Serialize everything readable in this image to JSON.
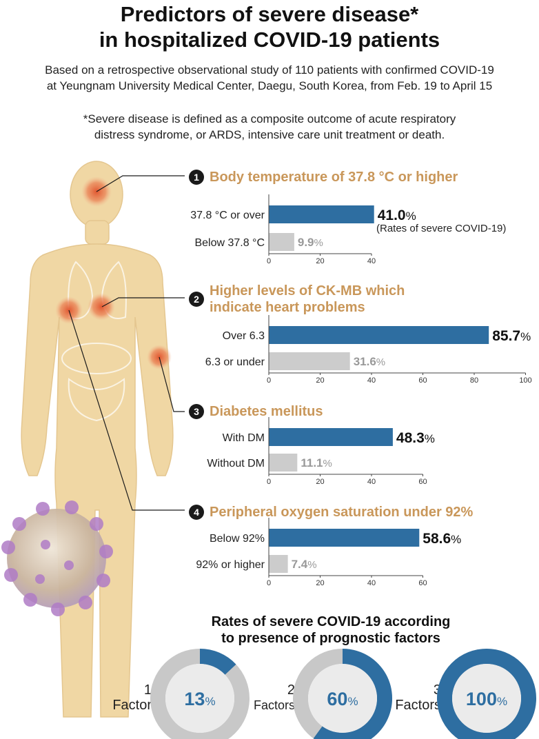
{
  "title": [
    "Predictors of severe disease*",
    "in hospitalized COVID-19 patients"
  ],
  "subtitle": [
    "Based on a retrospective observational study of 110 patients with confirmed COVID-19",
    "at Yeungnam University Medical Center, Daegu, South Korea, from Feb. 19 to April 15"
  ],
  "footnote": [
    "*Severe disease is defined as a composite outcome of acute respiratory",
    "distress syndrome, or ARDS, intensive care unit treatment or death."
  ],
  "colors": {
    "primary_bar": "#2e6ea1",
    "secondary_bar": "#cccccc",
    "section_title": "#c9975a",
    "secondary_text": "#999999"
  },
  "sections": [
    {
      "number": "1",
      "title": [
        "Body temperature of 37.8 °C or higher"
      ],
      "note": "(Rates of severe COVID-19)"
    },
    {
      "number": "2",
      "title": [
        "Higher levels of CK-MB which",
        "indicate heart problems"
      ]
    },
    {
      "number": "3",
      "title": [
        "Diabetes mellitus"
      ]
    },
    {
      "number": "4",
      "title": [
        "Peripheral oxygen saturation under 92%"
      ]
    }
  ],
  "donut_section": {
    "title": [
      "Rates of severe COVID-19 according",
      "to presence of prognostic factors"
    ]
  },
  "chart_data": [
    {
      "type": "bar",
      "orientation": "horizontal",
      "categories": [
        "37.8 °C or over",
        "Below 37.8 °C"
      ],
      "values": [
        41.0,
        9.9
      ],
      "value_labels": [
        "41.0",
        "9.9"
      ],
      "unit": "%",
      "xticks": [
        0,
        20,
        40
      ],
      "xlim": [
        0,
        40
      ]
    },
    {
      "type": "bar",
      "orientation": "horizontal",
      "categories": [
        "Over 6.3",
        "6.3 or under"
      ],
      "values": [
        85.7,
        31.6
      ],
      "value_labels": [
        "85.7",
        "31.6"
      ],
      "unit": "%",
      "xticks": [
        0,
        20,
        40,
        60,
        80,
        100
      ],
      "xlim": [
        0,
        100
      ]
    },
    {
      "type": "bar",
      "orientation": "horizontal",
      "categories": [
        "With DM",
        "Without DM"
      ],
      "values": [
        48.3,
        11.1
      ],
      "value_labels": [
        "48.3",
        "11.1"
      ],
      "unit": "%",
      "xticks": [
        0,
        20,
        40,
        60
      ],
      "xlim": [
        0,
        60
      ]
    },
    {
      "type": "bar",
      "orientation": "horizontal",
      "categories": [
        "Below 92%",
        "92% or higher"
      ],
      "values": [
        58.6,
        7.4
      ],
      "value_labels": [
        "58.6",
        "7.4"
      ],
      "unit": "%",
      "xticks": [
        0,
        20,
        40,
        60
      ],
      "xlim": [
        0,
        60
      ]
    },
    {
      "type": "pie",
      "style": "donut",
      "label": [
        "1",
        "Factor"
      ],
      "value": 13,
      "value_label": "13",
      "unit": "%"
    },
    {
      "type": "pie",
      "style": "donut",
      "label": [
        "2",
        "Factors"
      ],
      "value": 60,
      "value_label": "60",
      "unit": "%"
    },
    {
      "type": "pie",
      "style": "donut",
      "label": [
        "3",
        "Factors"
      ],
      "value": 100,
      "value_label": "100",
      "unit": "%"
    }
  ]
}
